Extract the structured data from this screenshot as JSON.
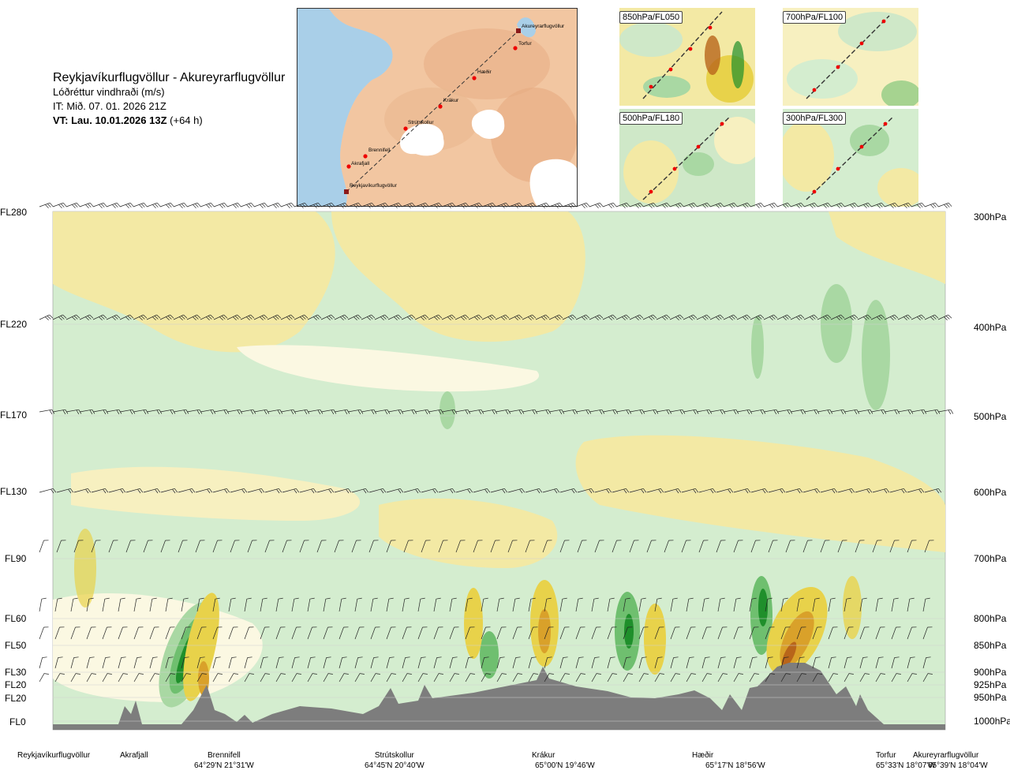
{
  "header": {
    "route": "Reykjavíkurflugvöllur - Akureyrarflugvöllur",
    "parameter": "Lóðréttur vindhraði (m/s)",
    "issue_time": "IT: Mið. 07. 01. 2026 21Z",
    "valid_time_bold": "VT: Lau. 10.01.2026 13Z",
    "valid_time_offset": "(+64 h)"
  },
  "route_map": {
    "waypoints": [
      "Akureyrarflugvöllur",
      "Torfur",
      "Hæðir",
      "Krákur",
      "Strútskollur",
      "Brennifell",
      "Akrafjall",
      "Reykjavíkurflugvöllur"
    ]
  },
  "thumbnails": [
    {
      "label": "850hPa/FL050"
    },
    {
      "label": "700hPa/FL100"
    },
    {
      "label": "500hPa/FL180"
    },
    {
      "label": "300hPa/FL300"
    }
  ],
  "chart_data": {
    "type": "heatmap",
    "title": "Lóðréttur vindhraði (m/s)",
    "x_axis": "distance along route",
    "y_axis": "flight level / pressure",
    "flight_levels": [
      "FL280",
      "FL220",
      "FL170",
      "FL130",
      "FL90",
      "FL60",
      "FL50",
      "FL30",
      "FL20",
      "FL20",
      "FL0"
    ],
    "pressure_levels": [
      "300hPa",
      "400hPa",
      "500hPa",
      "600hPa",
      "700hPa",
      "800hPa",
      "850hPa",
      "900hPa",
      "925hPa",
      "950hPa",
      "1000hPa"
    ],
    "stations": [
      {
        "name": "Reykjavíkurflugvöllur",
        "coord": ""
      },
      {
        "name": "Akrafjall",
        "coord": ""
      },
      {
        "name": "Brennifell",
        "coord": "64°29'N 21°31'W"
      },
      {
        "name": "Strútskollur",
        "coord": "64°45'N 20°40'W"
      },
      {
        "name": "Krákur",
        "coord": "65°00'N 19°46'W"
      },
      {
        "name": "Hæðir",
        "coord": "65°17'N 18°56'W"
      },
      {
        "name": "Torfur",
        "coord": "65°33'N 18°07'W"
      },
      {
        "name": "Akureyrarflugvöllur",
        "coord": "65°39'N 18°04'W"
      }
    ],
    "colors": {
      "strong_up": "#1f8f2b",
      "mod_up": "#6fbf6f",
      "weak_up": "#a9d8a3",
      "very_weak_up": "#d4edcf",
      "neutral": "#fbf8e2",
      "weak_down": "#f3e9a4",
      "mod_down": "#e8d24a",
      "strong_down": "#d9a12a",
      "very_strong_down": "#b8651a",
      "terrain": "#7d7d7d"
    }
  }
}
